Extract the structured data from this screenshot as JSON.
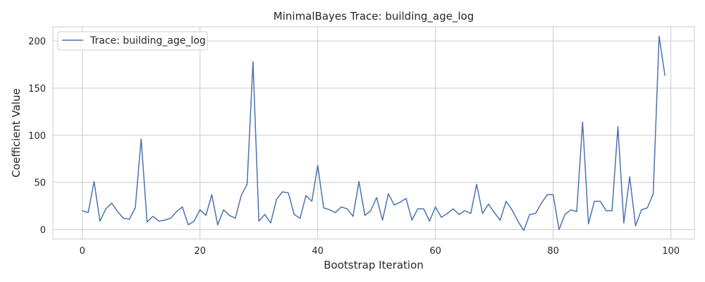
{
  "chart_data": {
    "type": "line",
    "title": "MinimalBayes Trace: building_age_log",
    "xlabel": "Bootstrap Iteration",
    "ylabel": "Coefficient Value",
    "xlim": [
      -5,
      104
    ],
    "ylim": [
      -10,
      215
    ],
    "xticks": [
      0,
      20,
      40,
      60,
      80,
      100
    ],
    "yticks": [
      0,
      50,
      100,
      150,
      200
    ],
    "grid": true,
    "legend_position": "top-left",
    "series": [
      {
        "name": "Trace: building_age_log",
        "color": "#4c72b0",
        "x": [
          0,
          1,
          2,
          3,
          4,
          5,
          6,
          7,
          8,
          9,
          10,
          11,
          12,
          13,
          14,
          15,
          16,
          17,
          18,
          19,
          20,
          21,
          22,
          23,
          24,
          25,
          26,
          27,
          28,
          29,
          30,
          31,
          32,
          33,
          34,
          35,
          36,
          37,
          38,
          39,
          40,
          41,
          42,
          43,
          44,
          45,
          46,
          47,
          48,
          49,
          50,
          51,
          52,
          53,
          54,
          55,
          56,
          57,
          58,
          59,
          60,
          61,
          62,
          63,
          64,
          65,
          66,
          67,
          68,
          69,
          70,
          71,
          72,
          73,
          74,
          75,
          76,
          77,
          78,
          79,
          80,
          81,
          82,
          83,
          84,
          85,
          86,
          87,
          88,
          89,
          90,
          91,
          92,
          93,
          94,
          95,
          96,
          97,
          98,
          99
        ],
        "values": [
          20,
          18,
          51,
          9,
          22,
          28,
          19,
          12,
          11,
          23,
          96,
          8,
          14,
          9,
          10,
          12,
          19,
          24,
          5,
          9,
          21,
          15,
          37,
          5,
          21,
          15,
          12,
          36,
          48,
          178,
          9,
          16,
          7,
          32,
          40,
          39,
          16,
          12,
          36,
          30,
          68,
          23,
          21,
          18,
          24,
          22,
          14,
          51,
          15,
          20,
          34,
          10,
          38,
          26,
          29,
          33,
          10,
          22,
          22,
          9,
          24,
          13,
          17,
          22,
          16,
          20,
          17,
          48,
          17,
          27,
          18,
          10,
          30,
          21,
          9,
          -1,
          16,
          17,
          28,
          37,
          37,
          0,
          16,
          21,
          19,
          114,
          6,
          30,
          30,
          20,
          20,
          109,
          7,
          56,
          4,
          21,
          23,
          38,
          205,
          163
        ]
      }
    ]
  }
}
